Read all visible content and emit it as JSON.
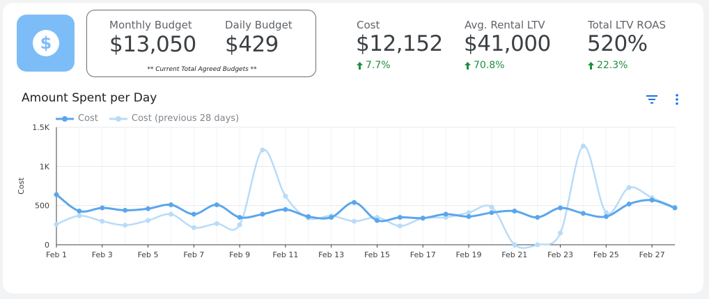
{
  "logo": {
    "icon": "dollar-icon",
    "glyph": "$",
    "color": "#7dbdf7"
  },
  "budgets": {
    "monthly": {
      "label": "Monthly Budget",
      "value": "$13,050"
    },
    "daily": {
      "label": "Daily Budget",
      "value": "$429"
    },
    "note": "** Current Total Agreed Budgets **"
  },
  "kpis": [
    {
      "label": "Cost",
      "value": "$12,152",
      "delta": "7.7%",
      "direction": "up"
    },
    {
      "label": "Avg. Rental LTV",
      "value": "$41,000",
      "delta": "70.8%",
      "direction": "up"
    },
    {
      "label": "Total LTV ROAS",
      "value": "520%",
      "delta": "22.3%",
      "direction": "up"
    }
  ],
  "colors": {
    "positive": "#1e8e3e",
    "accent": "#1a73e8"
  },
  "chart_title": "Amount Spent per Day",
  "toolbar": {
    "filter_icon": "filter-icon",
    "menu_icon": "more-vert-icon"
  },
  "chart_data": {
    "type": "line",
    "title": "Amount Spent per Day",
    "ylabel": "Cost",
    "xlabel": "",
    "ylim": [
      0,
      1500
    ],
    "yticks": [
      0,
      500,
      1000,
      1500
    ],
    "ytick_labels": [
      "0",
      "500",
      "1K",
      "1.5K"
    ],
    "x": [
      1,
      2,
      3,
      4,
      5,
      6,
      7,
      8,
      9,
      10,
      11,
      12,
      13,
      14,
      15,
      16,
      17,
      18,
      19,
      20,
      21,
      22,
      23,
      24,
      25,
      26,
      27,
      28
    ],
    "xtick_labels": [
      "Feb 1",
      "Feb 3",
      "Feb 5",
      "Feb 7",
      "Feb 9",
      "Feb 11",
      "Feb 13",
      "Feb 15",
      "Feb 17",
      "Feb 19",
      "Feb 21",
      "Feb 23",
      "Feb 25",
      "Feb 27"
    ],
    "xtick_positions": [
      1,
      3,
      5,
      7,
      9,
      11,
      13,
      15,
      17,
      19,
      21,
      23,
      25,
      27
    ],
    "grid": true,
    "legend": "top-left",
    "series": [
      {
        "name": "Cost",
        "color": "#5aa6ec",
        "values": [
          640,
          430,
          470,
          440,
          460,
          510,
          390,
          510,
          350,
          390,
          450,
          360,
          350,
          540,
          310,
          350,
          340,
          390,
          360,
          410,
          430,
          350,
          470,
          400,
          360,
          520,
          570,
          470
        ]
      },
      {
        "name": "Cost (previous 28 days)",
        "color": "#b8dbf8",
        "values": [
          260,
          370,
          300,
          250,
          310,
          390,
          220,
          270,
          255,
          1210,
          620,
          340,
          370,
          300,
          350,
          240,
          340,
          350,
          410,
          480,
          0,
          0,
          150,
          1260,
          410,
          730,
          600,
          480
        ]
      }
    ]
  }
}
